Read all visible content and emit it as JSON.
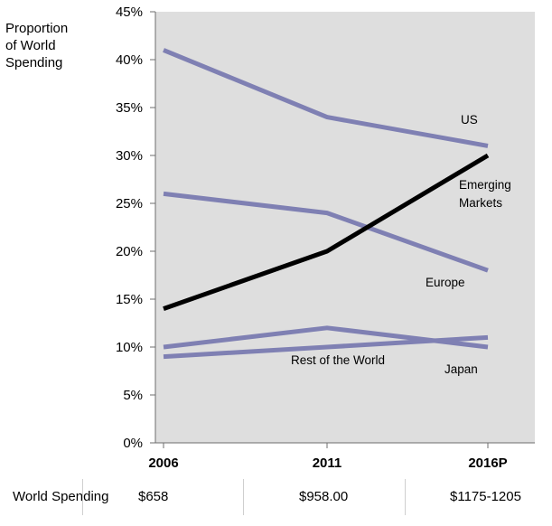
{
  "chart_data": {
    "type": "line",
    "ylabel": "Proportion of World Spending",
    "ylabel_lines": [
      "Proportion",
      "of World",
      "Spending"
    ],
    "categories": [
      "2006",
      "2011",
      "2016P"
    ],
    "ylim": [
      0,
      45
    ],
    "yticks": [
      0,
      5,
      10,
      15,
      20,
      25,
      30,
      35,
      40,
      45
    ],
    "ytick_labels": [
      "0%",
      "5%",
      "10%",
      "15%",
      "20%",
      "25%",
      "30%",
      "35%",
      "40%",
      "45%"
    ],
    "grid": false,
    "background": "#dedede",
    "series": [
      {
        "name": "US",
        "values": [
          41,
          34,
          31
        ],
        "color": "#7f80b3"
      },
      {
        "name": "Emerging Markets",
        "label_lines": [
          "Emerging",
          "Markets"
        ],
        "values": [
          14,
          20,
          30
        ],
        "color": "#000000"
      },
      {
        "name": "Europe",
        "values": [
          26,
          24,
          18
        ],
        "color": "#7f80b3"
      },
      {
        "name": "Japan",
        "values": [
          10,
          12,
          10
        ],
        "color": "#7f80b3"
      },
      {
        "name": "Rest of the World",
        "values": [
          9,
          10,
          11
        ],
        "color": "#7f80b3"
      }
    ]
  },
  "footer": {
    "label": "World Spending",
    "values": [
      "$658",
      "$958.00",
      "$1175-1205"
    ]
  }
}
